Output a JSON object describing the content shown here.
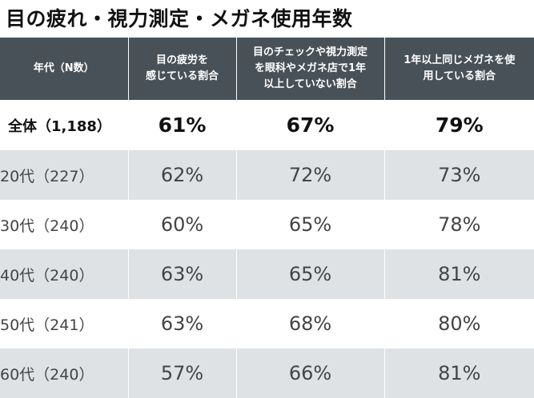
{
  "title": "目の疲れ・視力測定・メガネ使用年数",
  "headers": [
    [
      "年代（N数）"
    ],
    [
      "目の疲労を",
      "感じている割合"
    ],
    [
      "目のチェックや視力測定",
      "を眼科やメガネ店で1年",
      "以上していない割合"
    ],
    [
      "1年以上同じメガネを使",
      "用している割合"
    ]
  ],
  "rows": [
    {
      "label": "全体（1,188）",
      "values": [
        "61%",
        "67%",
        "79%"
      ]
    },
    {
      "label": "20代（227）",
      "values": [
        "62%",
        "72%",
        "73%"
      ]
    },
    {
      "label": "30代（240）",
      "values": [
        "60%",
        "65%",
        "78%"
      ]
    },
    {
      "label": "40代（240）",
      "values": [
        "63%",
        "65%",
        "81%"
      ]
    },
    {
      "label": "50代（241）",
      "values": [
        "63%",
        "68%",
        "80%"
      ]
    },
    {
      "label": "60代（240）",
      "values": [
        "57%",
        "66%",
        "81%"
      ]
    }
  ]
}
